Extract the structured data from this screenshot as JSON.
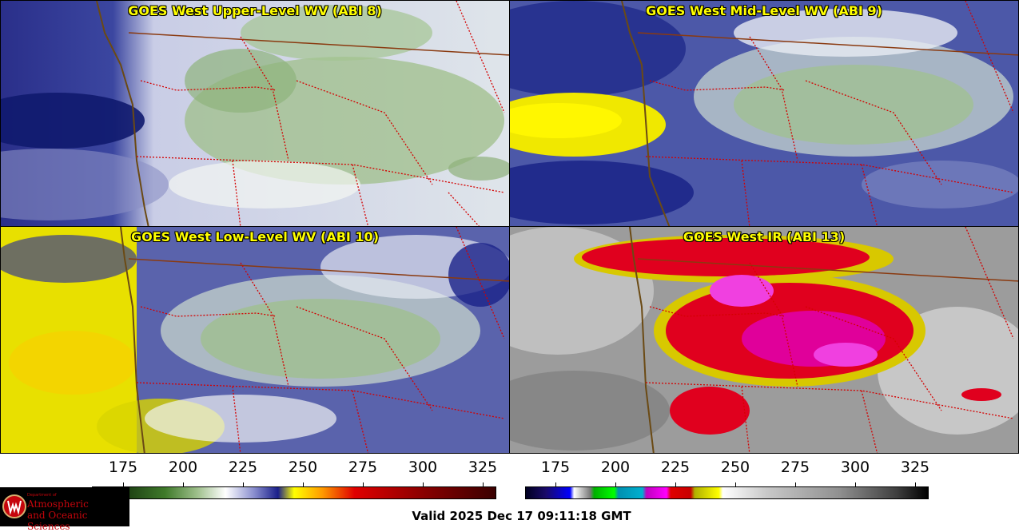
{
  "panels": [
    {
      "title": "GOES West Upper-Level WV (ABI 8)"
    },
    {
      "title": "GOES West Mid-Level WV (ABI 9)"
    },
    {
      "title": "GOES West Low-Level WV (ABI 10)"
    },
    {
      "title": "GOES West IR (ABI 13)"
    }
  ],
  "colorbar_wv": {
    "ticks": [
      "175",
      "200",
      "225",
      "250",
      "275",
      "300",
      "325"
    ]
  },
  "colorbar_ir": {
    "ticks": [
      "175",
      "200",
      "225",
      "250",
      "275",
      "300",
      "325"
    ]
  },
  "logo": {
    "dept": "Department of",
    "name_line1": "Atmospheric",
    "name_line2": "and Oceanic Sciences"
  },
  "valid_time": "Valid 2025 Dec 17 09:11:18 GMT",
  "colors": {
    "border": "#d40000",
    "coast": "#6b4a14",
    "title": "#ffff00"
  }
}
